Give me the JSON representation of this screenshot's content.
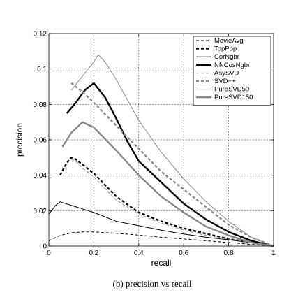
{
  "caption": "(b) precision vs recall",
  "chart_data": {
    "type": "line",
    "title": "",
    "xlabel": "recall",
    "ylabel": "precision",
    "xlim": [
      0,
      1
    ],
    "ylim": [
      0,
      0.12
    ],
    "xticks": [
      0,
      0.2,
      0.4,
      0.6,
      0.8,
      1
    ],
    "xtick_labels": [
      "0",
      "0.2",
      "0.4",
      "0.6",
      "0.8",
      "1"
    ],
    "yticks": [
      0,
      0.02,
      0.04,
      0.06,
      0.08,
      0.1,
      0.12
    ],
    "ytick_labels": [
      "0",
      "0.02",
      "0.04",
      "0.06",
      "0.08",
      "0.1",
      "0.12"
    ],
    "grid": true,
    "legend_position": "top-right",
    "series": [
      {
        "name": "MovieAvg",
        "color": "#000000",
        "dash": "dashed",
        "weight": "thin",
        "x": [
          0.0,
          0.05,
          0.1,
          0.15,
          0.2,
          0.3,
          0.4,
          0.5,
          0.6,
          0.7,
          0.8,
          0.9,
          1.0
        ],
        "y": [
          0.003,
          0.006,
          0.0075,
          0.008,
          0.008,
          0.0072,
          0.0062,
          0.005,
          0.004,
          0.003,
          0.002,
          0.001,
          0.0
        ]
      },
      {
        "name": "TopPop",
        "color": "#000000",
        "dash": "dashed",
        "weight": "thick",
        "x": [
          0.05,
          0.08,
          0.1,
          0.12,
          0.15,
          0.2,
          0.3,
          0.4,
          0.5,
          0.6,
          0.7,
          0.8,
          0.9,
          1.0
        ],
        "y": [
          0.04,
          0.047,
          0.05,
          0.049,
          0.046,
          0.041,
          0.028,
          0.019,
          0.014,
          0.01,
          0.007,
          0.004,
          0.002,
          0.0
        ]
      },
      {
        "name": "CorNgbr",
        "color": "#000000",
        "dash": "solid",
        "weight": "thin",
        "x": [
          0.0,
          0.03,
          0.05,
          0.1,
          0.15,
          0.2,
          0.3,
          0.4,
          0.5,
          0.6,
          0.7,
          0.8,
          0.9,
          1.0
        ],
        "y": [
          0.018,
          0.023,
          0.025,
          0.023,
          0.021,
          0.019,
          0.014,
          0.0115,
          0.009,
          0.0068,
          0.005,
          0.0035,
          0.002,
          0.0
        ]
      },
      {
        "name": "NNCosNgbr",
        "color": "#000000",
        "dash": "solid",
        "weight": "thick",
        "x": [
          0.08,
          0.12,
          0.16,
          0.2,
          0.25,
          0.3,
          0.35,
          0.4,
          0.5,
          0.6,
          0.7,
          0.8,
          0.9,
          1.0
        ],
        "y": [
          0.075,
          0.081,
          0.088,
          0.092,
          0.084,
          0.072,
          0.059,
          0.048,
          0.036,
          0.024,
          0.015,
          0.008,
          0.003,
          0.0
        ]
      },
      {
        "name": "AsySVD",
        "color": "#888888",
        "dash": "dashed",
        "weight": "thin",
        "x": [
          0.1,
          0.12,
          0.15,
          0.2,
          0.3,
          0.4,
          0.5,
          0.6,
          0.7,
          0.8,
          0.9,
          1.0
        ],
        "y": [
          0.049,
          0.048,
          0.044,
          0.039,
          0.026,
          0.018,
          0.013,
          0.009,
          0.006,
          0.004,
          0.002,
          0.0
        ]
      },
      {
        "name": "SVD++",
        "color": "#888888",
        "dash": "dashed",
        "weight": "thick",
        "x": [
          0.1,
          0.15,
          0.2,
          0.3,
          0.4,
          0.5,
          0.6,
          0.7,
          0.8,
          0.9,
          1.0
        ],
        "y": [
          0.092,
          0.087,
          0.081,
          0.068,
          0.055,
          0.042,
          0.032,
          0.022,
          0.012,
          0.005,
          0.0
        ]
      },
      {
        "name": "PureSVD50",
        "color": "#888888",
        "dash": "solid",
        "weight": "thin",
        "x": [
          0.1,
          0.15,
          0.2,
          0.22,
          0.25,
          0.3,
          0.4,
          0.5,
          0.6,
          0.7,
          0.8,
          0.9,
          1.0
        ],
        "y": [
          0.088,
          0.096,
          0.104,
          0.108,
          0.104,
          0.094,
          0.071,
          0.053,
          0.038,
          0.025,
          0.014,
          0.005,
          0.0
        ]
      },
      {
        "name": "PureSVD150",
        "color": "#888888",
        "dash": "solid",
        "weight": "thick",
        "x": [
          0.06,
          0.1,
          0.15,
          0.2,
          0.3,
          0.4,
          0.5,
          0.6,
          0.7,
          0.8,
          0.9,
          1.0
        ],
        "y": [
          0.056,
          0.064,
          0.07,
          0.067,
          0.054,
          0.04,
          0.028,
          0.019,
          0.011,
          0.006,
          0.002,
          0.0
        ]
      }
    ]
  }
}
